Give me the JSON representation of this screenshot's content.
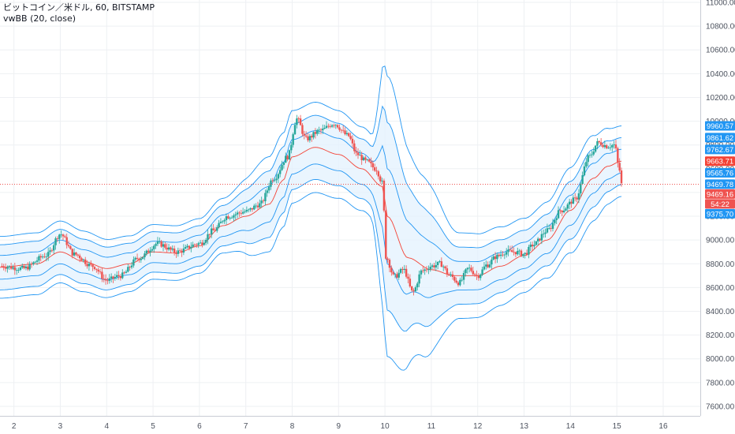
{
  "legend": {
    "symbol_line": "ビットコイン／米ドル, 60, BITSTAMP",
    "indicator_line": "vwBB (20, close)"
  },
  "colors": {
    "up": "#26a69a",
    "down": "#ef5350",
    "band": "#2196f3",
    "band_fill": "#e3f2fd",
    "basis": "#f44336",
    "price_line": "#ef5350",
    "grid": "#eef0f3"
  },
  "chart_data": {
    "type": "candlestick",
    "x_ticks": [
      "2",
      "3",
      "4",
      "5",
      "6",
      "7",
      "8",
      "9",
      "10",
      "11",
      "12",
      "13",
      "14",
      "15",
      "16"
    ],
    "xlim": [
      1.7,
      16.8
    ],
    "ylim": [
      7520,
      11020
    ],
    "y_ticks": [
      7600,
      7800,
      8000,
      8200,
      8400,
      8600,
      8800,
      9000,
      9200,
      9400,
      9600,
      9800,
      10000,
      10200,
      10400,
      10600,
      10800,
      11000
    ],
    "last_price": 9469.16,
    "price_labels": [
      {
        "label": "9960.57",
        "value": 9960.57,
        "color": "#2196f3"
      },
      {
        "label": "9861.62",
        "value": 9861.62,
        "color": "#2196f3"
      },
      {
        "label": "9762.67",
        "value": 9762.67,
        "color": "#2196f3"
      },
      {
        "label": "9663.71",
        "value": 9663.71,
        "color": "#f44336"
      },
      {
        "label": "9565.76",
        "value": 9565.76,
        "color": "#2196f3"
      },
      {
        "label": "9469.78",
        "value": 9469.78,
        "color": "#2196f3"
      },
      {
        "label": "9469.16",
        "value": 9469.16,
        "color": "#ef5350"
      },
      {
        "label": "54:22",
        "value": 9397,
        "color": "#ef5350"
      },
      {
        "label": "9375.70",
        "value": 9375.7,
        "color": "#2196f3"
      }
    ],
    "basis_nodes": [
      [
        1.7,
        8770
      ],
      [
        2.5,
        8800
      ],
      [
        3.0,
        8900
      ],
      [
        3.5,
        8820
      ],
      [
        4.0,
        8760
      ],
      [
        4.5,
        8800
      ],
      [
        5.0,
        8900
      ],
      [
        5.5,
        8890
      ],
      [
        6.0,
        8950
      ],
      [
        6.5,
        9120
      ],
      [
        7.0,
        9200
      ],
      [
        7.5,
        9300
      ],
      [
        7.8,
        9500
      ],
      [
        8.0,
        9700
      ],
      [
        8.5,
        9780
      ],
      [
        9.0,
        9720
      ],
      [
        9.5,
        9600
      ],
      [
        9.95,
        9450
      ],
      [
        10.05,
        9200
      ],
      [
        10.5,
        8850
      ],
      [
        11.0,
        8750
      ],
      [
        11.5,
        8700
      ],
      [
        12.0,
        8700
      ],
      [
        12.5,
        8780
      ],
      [
        13.0,
        8870
      ],
      [
        13.5,
        9000
      ],
      [
        14.0,
        9250
      ],
      [
        14.5,
        9520
      ],
      [
        14.8,
        9620
      ],
      [
        15.1,
        9663.71
      ]
    ],
    "band_nodes": [
      {
        "x": 1.7,
        "width": [
          100,
          190,
          260
        ]
      },
      {
        "x": 3.0,
        "width": [
          100,
          190,
          260
        ]
      },
      {
        "x": 5.0,
        "width": [
          90,
          170,
          230
        ]
      },
      {
        "x": 6.5,
        "width": [
          90,
          170,
          230
        ]
      },
      {
        "x": 7.5,
        "width": [
          150,
          280,
          400
        ]
      },
      {
        "x": 8.5,
        "width": [
          140,
          270,
          380
        ]
      },
      {
        "x": 9.7,
        "width": [
          130,
          250,
          350
        ]
      },
      {
        "x": 10.05,
        "width": [
          400,
          790,
          1180
        ]
      },
      {
        "x": 10.8,
        "width": [
          250,
          500,
          760
        ]
      },
      {
        "x": 11.6,
        "width": [
          120,
          240,
          360
        ]
      },
      {
        "x": 13.2,
        "width": [
          110,
          210,
          310
        ]
      },
      {
        "x": 14.3,
        "width": [
          130,
          250,
          370
        ]
      },
      {
        "x": 15.1,
        "width": [
          100,
          198,
          297
        ]
      }
    ],
    "price_nodes": [
      [
        1.7,
        8780
      ],
      [
        2.2,
        8760
      ],
      [
        2.7,
        8870
      ],
      [
        3.0,
        9050
      ],
      [
        3.3,
        8880
      ],
      [
        3.7,
        8780
      ],
      [
        4.0,
        8660
      ],
      [
        4.3,
        8700
      ],
      [
        4.7,
        8850
      ],
      [
        5.1,
        8970
      ],
      [
        5.5,
        8900
      ],
      [
        6.0,
        8970
      ],
      [
        6.3,
        9080
      ],
      [
        6.6,
        9200
      ],
      [
        7.0,
        9240
      ],
      [
        7.3,
        9300
      ],
      [
        7.6,
        9520
      ],
      [
        7.9,
        9700
      ],
      [
        8.1,
        10020
      ],
      [
        8.3,
        9850
      ],
      [
        8.6,
        9920
      ],
      [
        8.9,
        9980
      ],
      [
        9.2,
        9880
      ],
      [
        9.4,
        9720
      ],
      [
        9.6,
        9660
      ],
      [
        9.8,
        9600
      ],
      [
        9.95,
        9480
      ],
      [
        10.02,
        8860
      ],
      [
        10.2,
        8690
      ],
      [
        10.4,
        8750
      ],
      [
        10.6,
        8560
      ],
      [
        10.8,
        8740
      ],
      [
        11.0,
        8780
      ],
      [
        11.2,
        8800
      ],
      [
        11.4,
        8700
      ],
      [
        11.6,
        8640
      ],
      [
        11.8,
        8760
      ],
      [
        12.0,
        8700
      ],
      [
        12.2,
        8790
      ],
      [
        12.4,
        8860
      ],
      [
        12.6,
        8900
      ],
      [
        12.8,
        8900
      ],
      [
        13.0,
        8880
      ],
      [
        13.2,
        8960
      ],
      [
        13.5,
        9080
      ],
      [
        13.8,
        9250
      ],
      [
        14.1,
        9340
      ],
      [
        14.4,
        9700
      ],
      [
        14.6,
        9820
      ],
      [
        14.8,
        9790
      ],
      [
        14.95,
        9800
      ],
      [
        15.05,
        9600
      ],
      [
        15.1,
        9469.16
      ]
    ]
  }
}
